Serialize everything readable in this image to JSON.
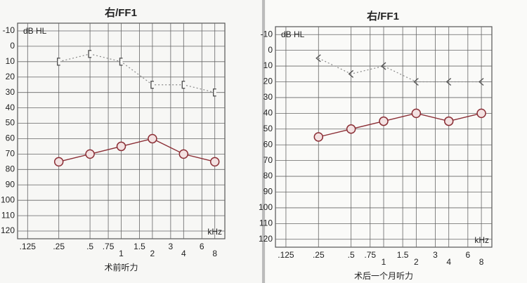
{
  "chart_data": [
    {
      "type": "line",
      "title": "右/FF1",
      "y_label": "dB HL",
      "x_label": "kHz",
      "caption": "术前听力",
      "log_x": true,
      "grid": true,
      "y_inverted": true,
      "x": [
        0.25,
        0.5,
        1,
        2,
        4,
        8
      ],
      "xlim": [
        0.1,
        10
      ],
      "xticks": [
        {
          "value": 0.125,
          "label": ".125"
        },
        {
          "value": 0.25,
          "label": ".25"
        },
        {
          "value": 0.5,
          "label": ".5"
        },
        {
          "value": 0.75,
          "label": ".75"
        },
        1,
        1.5,
        2,
        3,
        4,
        6,
        8
      ],
      "ylim": [
        -15,
        125
      ],
      "yticks": [
        -10,
        0,
        10,
        20,
        30,
        40,
        50,
        60,
        70,
        80,
        90,
        100,
        110,
        120
      ],
      "series": [
        {
          "color": "#8b2e35",
          "marker": "circle",
          "dashed": false,
          "values": [
            75,
            70,
            65,
            60,
            70,
            75
          ]
        },
        {
          "color": "#8a8a8a",
          "marker": "bracket",
          "dashed": true,
          "values": [
            10,
            5,
            10,
            25,
            25,
            30
          ]
        }
      ]
    },
    {
      "type": "line",
      "title": "右/FF1",
      "y_label": "dB HL",
      "x_label": "kHz",
      "caption": "术后一个月听力",
      "log_x": true,
      "grid": true,
      "y_inverted": true,
      "x": [
        0.25,
        0.5,
        1,
        2,
        4,
        8
      ],
      "xlim": [
        0.1,
        10
      ],
      "xticks": [
        {
          "value": 0.125,
          "label": ".125"
        },
        {
          "value": 0.25,
          "label": ".25"
        },
        {
          "value": 0.5,
          "label": ".5"
        },
        {
          "value": 0.75,
          "label": ".75"
        },
        1,
        1.5,
        2,
        3,
        4,
        6,
        8
      ],
      "ylim": [
        -15,
        125
      ],
      "yticks": [
        -10,
        0,
        10,
        20,
        30,
        40,
        50,
        60,
        70,
        80,
        90,
        100,
        110,
        120
      ],
      "series": [
        {
          "color": "#8b2e35",
          "marker": "circle",
          "dashed": false,
          "values": [
            55,
            50,
            45,
            40,
            45,
            40
          ]
        },
        {
          "color": "#8a8a8a",
          "marker": "angle",
          "dashed": true,
          "values": [
            5,
            15,
            10,
            20,
            20,
            20
          ]
        }
      ]
    }
  ]
}
